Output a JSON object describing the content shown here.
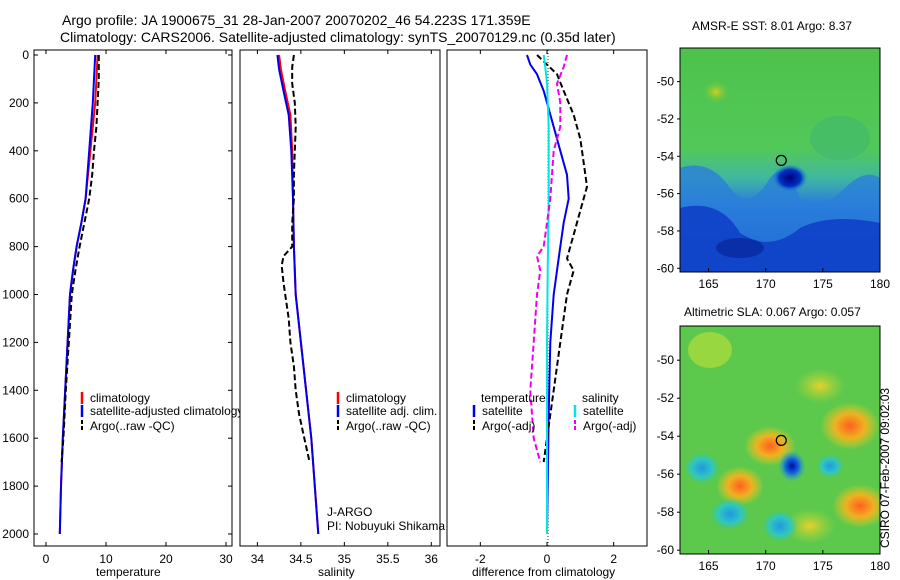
{
  "header": {
    "title_line1": "Argo profile: JA 1900675_31 28-Jan-2007 20070202_46 54.223S 171.359E",
    "title_line2": "Climatology: CARS2006. Satellite-adjusted climatology: synTS_20070129.nc (0.35d later)"
  },
  "side_stamp": "CSIRO 07-Feb-2007 09:02:03",
  "credit": {
    "line1": "J-ARGO",
    "line2": "PI: Nobuyuki Shikama"
  },
  "colors": {
    "climatology": "#ff0000",
    "satellite": "#0000ee",
    "argo": "#000000",
    "salinity_satellite": "#00e5e5",
    "salinity_argo": "#ee00ee"
  },
  "chart_data": [
    {
      "type": "line",
      "id": "temperature",
      "xlabel": "temperature",
      "ylabel": "",
      "xlim": [
        -2,
        31
      ],
      "ylim": [
        2050,
        0
      ],
      "x_ticks": [
        0,
        10,
        20,
        30
      ],
      "y_ticks": [
        0,
        200,
        400,
        600,
        800,
        1000,
        1200,
        1400,
        1600,
        1800,
        2000
      ],
      "legend": {
        "position": "bottom-right",
        "entries": [
          "climatology",
          "satellite-adjusted climatology",
          "Argo(..raw -QC)"
        ]
      },
      "series": [
        {
          "name": "climatology",
          "color": "#ff0000",
          "style": "solid",
          "points": [
            [
              8.6,
              0
            ],
            [
              8.4,
              100
            ],
            [
              8.2,
              200
            ],
            [
              7.8,
              300
            ],
            [
              7.4,
              400
            ],
            [
              7.0,
              500
            ],
            [
              6.6,
              600
            ],
            [
              5.9,
              700
            ],
            [
              5.1,
              800
            ],
            [
              4.5,
              900
            ],
            [
              4.0,
              1000
            ],
            [
              3.6,
              1200
            ],
            [
              3.2,
              1400
            ],
            [
              2.8,
              1600
            ],
            [
              2.5,
              1800
            ],
            [
              2.3,
              2000
            ]
          ]
        },
        {
          "name": "satellite-adjusted climatology",
          "color": "#0000ee",
          "style": "solid",
          "points": [
            [
              8.2,
              0
            ],
            [
              8.0,
              100
            ],
            [
              7.8,
              200
            ],
            [
              7.5,
              300
            ],
            [
              7.2,
              400
            ],
            [
              6.9,
              500
            ],
            [
              6.6,
              600
            ],
            [
              5.9,
              700
            ],
            [
              5.1,
              800
            ],
            [
              4.5,
              900
            ],
            [
              4.0,
              1000
            ],
            [
              3.6,
              1200
            ],
            [
              3.2,
              1400
            ],
            [
              2.8,
              1600
            ],
            [
              2.5,
              1800
            ],
            [
              2.3,
              2000
            ]
          ]
        },
        {
          "name": "Argo(..raw -QC)",
          "color": "#000000",
          "style": "dashed",
          "points": [
            [
              8.8,
              0
            ],
            [
              8.8,
              100
            ],
            [
              8.6,
              200
            ],
            [
              8.4,
              300
            ],
            [
              8.0,
              400
            ],
            [
              7.7,
              500
            ],
            [
              7.2,
              600
            ],
            [
              6.4,
              700
            ],
            [
              5.6,
              800
            ],
            [
              4.9,
              900
            ],
            [
              4.3,
              1000
            ],
            [
              3.8,
              1200
            ],
            [
              3.3,
              1400
            ],
            [
              2.9,
              1600
            ],
            [
              2.6,
              1700
            ]
          ]
        }
      ]
    },
    {
      "type": "line",
      "id": "salinity",
      "xlabel": "salinity",
      "ylabel": "",
      "xlim": [
        33.8,
        36.1
      ],
      "ylim": [
        2050,
        0
      ],
      "x_ticks": [
        34,
        34.5,
        35,
        35.5,
        36
      ],
      "legend": {
        "position": "bottom-right",
        "entries": [
          "climatology",
          "satellite adj. clim.",
          "Argo(..raw -QC)"
        ]
      },
      "series": [
        {
          "name": "climatology",
          "color": "#ff0000",
          "style": "solid",
          "points": [
            [
              34.25,
              0
            ],
            [
              34.27,
              60
            ],
            [
              34.32,
              150
            ],
            [
              34.38,
              250
            ],
            [
              34.4,
              400
            ],
            [
              34.41,
              600
            ],
            [
              34.42,
              800
            ],
            [
              34.43,
              900
            ],
            [
              34.44,
              1000
            ],
            [
              34.5,
              1200
            ],
            [
              34.56,
              1400
            ],
            [
              34.62,
              1600
            ],
            [
              34.66,
              1800
            ],
            [
              34.7,
              2000
            ]
          ]
        },
        {
          "name": "satellite adj. clim.",
          "color": "#0000ee",
          "style": "solid",
          "points": [
            [
              34.23,
              0
            ],
            [
              34.25,
              60
            ],
            [
              34.3,
              150
            ],
            [
              34.36,
              250
            ],
            [
              34.39,
              400
            ],
            [
              34.41,
              600
            ],
            [
              34.42,
              800
            ],
            [
              34.43,
              900
            ],
            [
              34.44,
              1000
            ],
            [
              34.5,
              1200
            ],
            [
              34.56,
              1400
            ],
            [
              34.62,
              1600
            ],
            [
              34.66,
              1800
            ],
            [
              34.7,
              2000
            ]
          ]
        },
        {
          "name": "Argo(..raw -QC)",
          "color": "#000000",
          "style": "dashed",
          "points": [
            [
              34.42,
              0
            ],
            [
              34.4,
              50
            ],
            [
              34.4,
              120
            ],
            [
              34.43,
              200
            ],
            [
              34.44,
              300
            ],
            [
              34.43,
              400
            ],
            [
              34.42,
              500
            ],
            [
              34.42,
              600
            ],
            [
              34.4,
              700
            ],
            [
              34.4,
              800
            ],
            [
              34.3,
              840
            ],
            [
              34.28,
              880
            ],
            [
              34.3,
              950
            ],
            [
              34.32,
              1000
            ],
            [
              34.36,
              1100
            ],
            [
              34.38,
              1200
            ],
            [
              34.42,
              1300
            ],
            [
              34.44,
              1400
            ],
            [
              34.48,
              1500
            ],
            [
              34.54,
              1600
            ],
            [
              34.6,
              1700
            ]
          ]
        }
      ]
    },
    {
      "type": "line",
      "id": "difference",
      "xlabel": "difference from climatology",
      "ylabel": "",
      "xlim": [
        -3,
        3
      ],
      "ylim": [
        2050,
        0
      ],
      "x_ticks": [
        -2,
        0,
        2
      ],
      "legend": {
        "position": "bottom-right",
        "groups": [
          {
            "title": "temperature",
            "entries": [
              "satellite",
              "Argo(-adj)"
            ]
          },
          {
            "title": "salinity",
            "entries": [
              "satellite",
              "Argo(-adj)"
            ]
          }
        ]
      },
      "series": [
        {
          "name": "temperature satellite",
          "color": "#0000ee",
          "style": "solid",
          "points": [
            [
              -0.6,
              0
            ],
            [
              -0.5,
              40
            ],
            [
              -0.3,
              80
            ],
            [
              -0.1,
              150
            ],
            [
              0.2,
              300
            ],
            [
              0.4,
              400
            ],
            [
              0.6,
              500
            ],
            [
              0.65,
              600
            ],
            [
              0.5,
              700
            ],
            [
              0.4,
              800
            ],
            [
              0.3,
              900
            ],
            [
              0.2,
              1000
            ],
            [
              0.1,
              1200
            ],
            [
              0.05,
              1500
            ],
            [
              0.0,
              2000
            ]
          ]
        },
        {
          "name": "temperature Argo(-adj)",
          "color": "#000000",
          "style": "dashed",
          "points": [
            [
              -0.3,
              0
            ],
            [
              0.0,
              40
            ],
            [
              0.3,
              80
            ],
            [
              0.5,
              150
            ],
            [
              0.8,
              250
            ],
            [
              1.0,
              350
            ],
            [
              1.1,
              450
            ],
            [
              1.2,
              550
            ],
            [
              1.0,
              650
            ],
            [
              0.8,
              750
            ],
            [
              0.7,
              800
            ],
            [
              0.6,
              850
            ],
            [
              0.8,
              900
            ],
            [
              0.7,
              950
            ],
            [
              0.6,
              1000
            ],
            [
              0.4,
              1200
            ],
            [
              0.2,
              1400
            ],
            [
              0.0,
              1600
            ],
            [
              -0.1,
              1700
            ]
          ]
        },
        {
          "name": "salinity satellite",
          "color": "#00e5e5",
          "style": "solid",
          "points": [
            [
              -0.1,
              0
            ],
            [
              -0.05,
              50
            ],
            [
              0.0,
              120
            ],
            [
              0.05,
              300
            ],
            [
              0.05,
              600
            ],
            [
              0.02,
              900
            ],
            [
              0.0,
              1200
            ],
            [
              0.0,
              2000
            ]
          ]
        },
        {
          "name": "salinity Argo(-adj)",
          "color": "#ee00ee",
          "style": "dashed",
          "points": [
            [
              0.6,
              0
            ],
            [
              0.5,
              50
            ],
            [
              0.3,
              120
            ],
            [
              0.4,
              200
            ],
            [
              0.4,
              300
            ],
            [
              0.2,
              400
            ],
            [
              0.1,
              600
            ],
            [
              0.0,
              700
            ],
            [
              -0.1,
              800
            ],
            [
              -0.3,
              840
            ],
            [
              -0.2,
              900
            ],
            [
              -0.3,
              1000
            ],
            [
              -0.4,
              1200
            ],
            [
              -0.5,
              1400
            ],
            [
              -0.4,
              1600
            ],
            [
              -0.2,
              1700
            ]
          ]
        }
      ]
    },
    {
      "type": "heatmap",
      "id": "sst_map",
      "title": "AMSR-E SST: 8.01 Argo: 8.37",
      "xlim": [
        162.5,
        180
      ],
      "ylim": [
        -60.2,
        -48.2
      ],
      "x_ticks": [
        165,
        170,
        175,
        180
      ],
      "y_ticks": [
        -50,
        -52,
        -54,
        -56,
        -58,
        -60
      ],
      "argo_position": [
        171.36,
        -54.22
      ]
    },
    {
      "type": "heatmap",
      "id": "sla_map",
      "title": "Altimetric SLA: 0.067 Argo: 0.057",
      "xlim": [
        162.5,
        180
      ],
      "ylim": [
        -60.2,
        -48.2
      ],
      "x_ticks": [
        165,
        170,
        175,
        180
      ],
      "y_ticks": [
        -50,
        -52,
        -54,
        -56,
        -58,
        -60
      ],
      "argo_position": [
        171.36,
        -54.22
      ]
    }
  ]
}
